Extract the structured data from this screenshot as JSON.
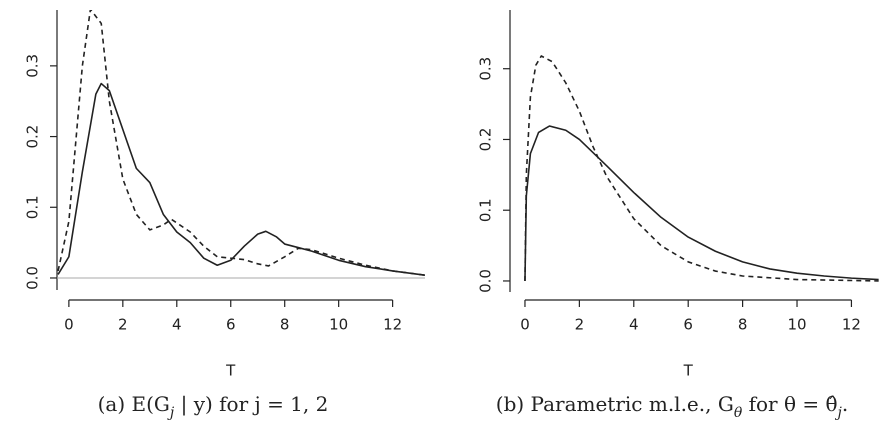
{
  "chart_data": [
    {
      "type": "line",
      "xlabel": "T",
      "xlim": [
        -0.44,
        13.2
      ],
      "ylim": [
        -0.017,
        0.379
      ],
      "xticks": [
        0,
        2,
        4,
        6,
        8,
        10,
        12
      ],
      "yticks": [
        {
          "value": 0,
          "label": "0.0"
        },
        0.1,
        0.2,
        0.3
      ],
      "hline": 0,
      "hline_color": "#aaaaaa",
      "series": [
        {
          "color": "#222222",
          "dash": false,
          "x": [
            -0.4,
            0,
            0.5,
            1,
            1.2,
            1.5,
            2,
            2.5,
            3,
            3.5,
            4,
            4.5,
            5,
            5.5,
            6,
            6.5,
            7,
            7.3,
            7.7,
            8,
            8.5,
            9,
            10,
            11,
            12,
            13.2
          ],
          "values": [
            0.005,
            0.03,
            0.15,
            0.26,
            0.275,
            0.265,
            0.21,
            0.155,
            0.135,
            0.09,
            0.065,
            0.05,
            0.028,
            0.018,
            0.025,
            0.045,
            0.062,
            0.066,
            0.058,
            0.048,
            0.043,
            0.038,
            0.025,
            0.016,
            0.01,
            0.004
          ]
        },
        {
          "color": "#222222",
          "dash": true,
          "x": [
            -0.4,
            0,
            0.5,
            0.8,
            1.2,
            1.5,
            2,
            2.5,
            3,
            3.5,
            3.8,
            4.5,
            5,
            5.5,
            6,
            6.5,
            7,
            7.4,
            8,
            8.5,
            9,
            10,
            11,
            12,
            13.2
          ],
          "values": [
            0.01,
            0.08,
            0.3,
            0.38,
            0.36,
            0.25,
            0.14,
            0.09,
            0.068,
            0.075,
            0.083,
            0.065,
            0.045,
            0.03,
            0.028,
            0.026,
            0.02,
            0.017,
            0.03,
            0.042,
            0.04,
            0.028,
            0.018,
            0.01,
            0.004
          ]
        }
      ],
      "caption": [
        {
          "text": "(a) E(G"
        },
        {
          "text": "j",
          "sub": true
        },
        {
          "text": " | y) for j = 1, 2"
        }
      ]
    },
    {
      "type": "line",
      "xlabel": "T",
      "xlim": [
        -0.55,
        13.05
      ],
      "ylim": [
        -0.0156,
        0.383
      ],
      "xticks": [
        0,
        2,
        4,
        6,
        8,
        10,
        12
      ],
      "yticks": [
        {
          "value": 0,
          "label": "0.0"
        },
        0.1,
        0.2,
        0.3
      ],
      "series": [
        {
          "color": "#222222",
          "dash": false,
          "x": [
            0,
            0.05,
            0.2,
            0.5,
            0.9,
            1.5,
            2,
            3,
            4,
            5,
            6,
            7,
            8,
            9,
            10,
            11,
            12,
            13
          ],
          "values": [
            0,
            0.12,
            0.18,
            0.21,
            0.219,
            0.213,
            0.2,
            0.163,
            0.125,
            0.09,
            0.062,
            0.042,
            0.027,
            0.017,
            0.011,
            0.007,
            0.004,
            0.002
          ]
        },
        {
          "color": "#222222",
          "dash": true,
          "x": [
            0,
            0.05,
            0.2,
            0.4,
            0.6,
            1,
            1.5,
            2,
            2.5,
            3,
            4,
            5,
            6,
            7,
            8,
            10,
            13
          ],
          "values": [
            0,
            0.15,
            0.26,
            0.305,
            0.318,
            0.31,
            0.28,
            0.24,
            0.19,
            0.148,
            0.088,
            0.05,
            0.027,
            0.014,
            0.007,
            0.002,
            0
          ]
        }
      ],
      "caption": [
        {
          "text": "(b) Parametric m.l.e., G"
        },
        {
          "text": "θ",
          "sub": true
        },
        {
          "text": " for θ = "
        },
        {
          "text": "θ̂"
        },
        {
          "text": "j",
          "sub": true
        },
        {
          "text": "."
        }
      ]
    }
  ]
}
